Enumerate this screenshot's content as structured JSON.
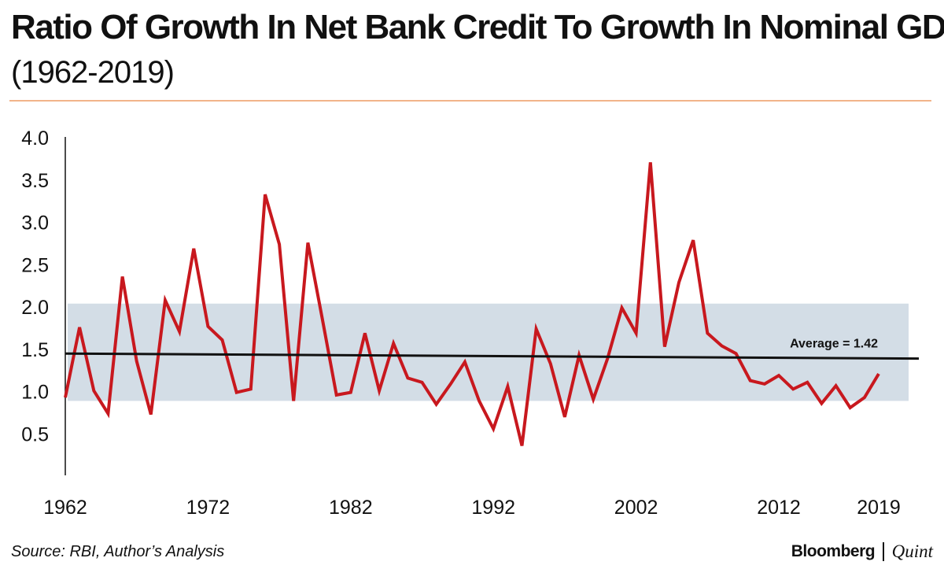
{
  "header": {
    "title": "Ratio Of Growth In Net Bank Credit To Growth In Nominal GDP",
    "subtitle": "(1962-2019)"
  },
  "footer": {
    "source": "Source: RBI, Author’s Analysis",
    "brand_primary": "Bloomberg",
    "brand_secondary": "Quint"
  },
  "colors": {
    "line": "#c8181e",
    "band": "#d3dde6",
    "average_line": "#111111",
    "rule": "#f2b48a"
  },
  "chart_data": {
    "type": "line",
    "title": "Ratio Of Growth In Net Bank Credit To Growth In Nominal GDP",
    "subtitle": "(1962-2019)",
    "xlabel": "",
    "ylabel": "",
    "xlim": [
      1962,
      2019
    ],
    "ylim": [
      0,
      4.0
    ],
    "y_ticks": [
      "4.0",
      "3.5",
      "3.0",
      "2.5",
      "2.0",
      "1.5",
      "1.0",
      "0.5"
    ],
    "y_tick_values": [
      4.0,
      3.5,
      3.0,
      2.5,
      2.0,
      1.5,
      1.0,
      0.5
    ],
    "x_ticks": [
      "1962",
      "1972",
      "1982",
      "1992",
      "2002",
      "2012",
      "2019"
    ],
    "x_tick_values": [
      1962,
      1972,
      1982,
      1992,
      2002,
      2012,
      2019
    ],
    "grid": false,
    "legend": "none",
    "band": {
      "from": 0.88,
      "to": 2.03
    },
    "average": {
      "value": 1.42,
      "label": "Average = 1.42"
    },
    "series": [
      {
        "x": [
          1962,
          1963,
          1964,
          1965,
          1966,
          1967,
          1968,
          1969,
          1970,
          1971,
          1972,
          1973,
          1974,
          1975,
          1976,
          1977,
          1978,
          1979,
          1980,
          1981,
          1982,
          1983,
          1984,
          1985,
          1986,
          1987,
          1988,
          1989,
          1990,
          1991,
          1992,
          1993,
          1994,
          1995,
          1996,
          1997,
          1998,
          1999,
          2000,
          2001,
          2002,
          2003,
          2004,
          2005,
          2006,
          2007,
          2008,
          2009,
          2010,
          2011,
          2012,
          2013,
          2014,
          2015,
          2016,
          2017,
          2018,
          2019
        ],
        "values": [
          0.92,
          1.75,
          1.0,
          0.73,
          2.35,
          1.35,
          0.72,
          2.07,
          1.7,
          2.68,
          1.76,
          1.6,
          0.98,
          1.02,
          3.32,
          2.73,
          0.88,
          2.75,
          1.86,
          0.95,
          0.98,
          1.68,
          1.0,
          1.56,
          1.15,
          1.1,
          0.84,
          1.08,
          1.34,
          0.88,
          0.55,
          1.05,
          0.35,
          1.73,
          1.32,
          0.69,
          1.42,
          0.9,
          1.38,
          1.98,
          1.68,
          3.7,
          1.52,
          2.28,
          2.78,
          1.68,
          1.53,
          1.44,
          1.12,
          1.08,
          1.18,
          1.02,
          1.1,
          0.85,
          1.06,
          0.8,
          0.92,
          1.2
        ]
      }
    ]
  }
}
